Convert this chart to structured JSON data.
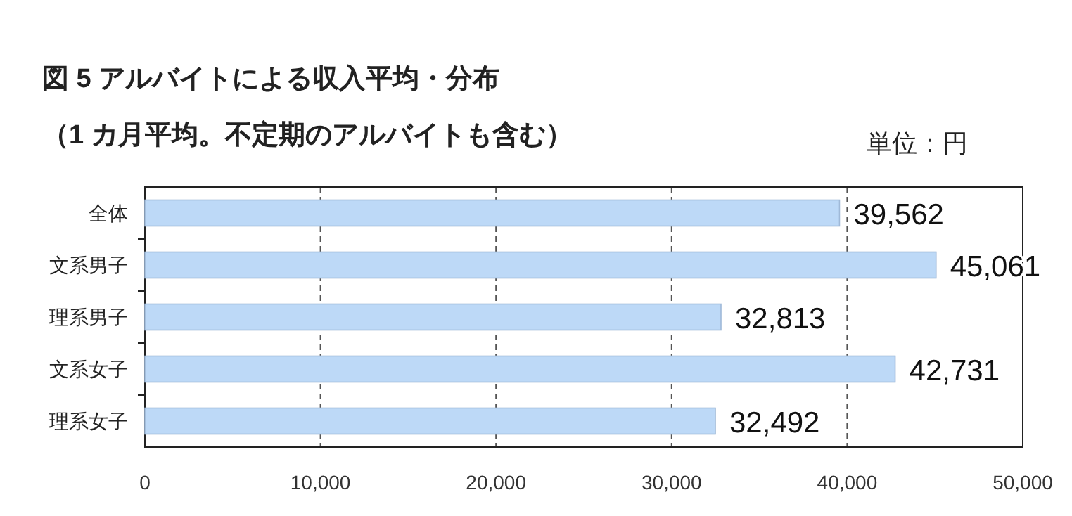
{
  "chart_data": {
    "type": "bar",
    "orientation": "horizontal",
    "title": "図 5  アルバイトによる収入平均・分布",
    "subtitle": "（1 カ月平均。不定期のアルバイトも含む）",
    "annotations": [
      "単位：円"
    ],
    "categories": [
      "全体",
      "文系男子",
      "理系男子",
      "文系女子",
      "理系女子"
    ],
    "values": [
      39562,
      45061,
      32813,
      42731,
      32492
    ],
    "value_labels": [
      "39,562",
      "45,061",
      "32,813",
      "42,731",
      "32,492"
    ],
    "color": "#bdd9f7",
    "xlim": [
      0,
      50000
    ],
    "xticks": [
      {
        "value": 0,
        "label": "0"
      },
      {
        "value": 10000,
        "label": "10,000"
      },
      {
        "value": 20000,
        "label": "20,000"
      },
      {
        "value": 30000,
        "label": "30,000"
      },
      {
        "value": 40000,
        "label": "40,000"
      },
      {
        "value": 50000,
        "label": "50,000"
      }
    ],
    "grid": "x"
  }
}
